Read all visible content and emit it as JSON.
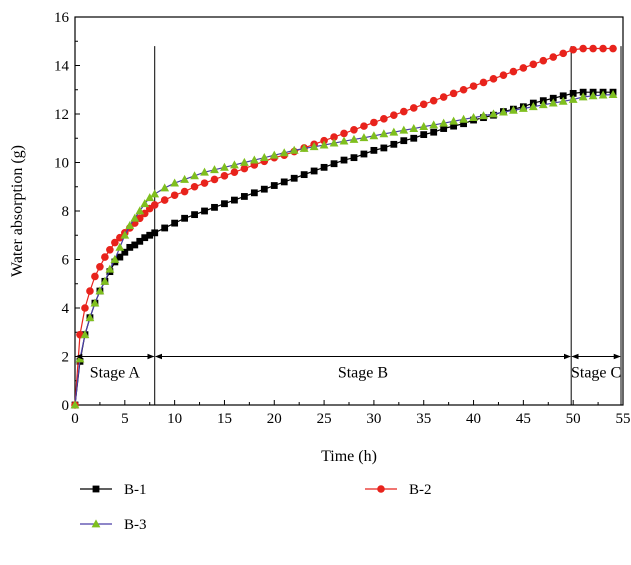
{
  "chart_data": {
    "type": "line",
    "xlabel": "Time (h)",
    "ylabel": "Water absorption (g)",
    "xlim": [
      0,
      55
    ],
    "ylim": [
      0,
      16
    ],
    "xticks": [
      0,
      5,
      10,
      15,
      20,
      25,
      30,
      35,
      40,
      45,
      50,
      55
    ],
    "yticks": [
      0,
      2,
      4,
      6,
      8,
      10,
      12,
      14,
      16
    ],
    "grid": false,
    "legend_position": "bottom",
    "series": [
      {
        "name": "B-1",
        "color": "#000000",
        "marker": "square",
        "x": [
          0,
          0.5,
          1,
          1.5,
          2,
          2.5,
          3,
          3.5,
          4,
          4.5,
          5,
          5.5,
          6,
          6.5,
          7,
          7.5,
          8,
          9,
          10,
          11,
          12,
          13,
          14,
          15,
          16,
          17,
          18,
          19,
          20,
          21,
          22,
          23,
          24,
          25,
          26,
          27,
          28,
          29,
          30,
          31,
          32,
          33,
          34,
          35,
          36,
          37,
          38,
          39,
          40,
          41,
          42,
          43,
          44,
          45,
          46,
          47,
          48,
          49,
          50,
          51,
          52,
          53,
          54
        ],
        "y": [
          0,
          1.8,
          2.9,
          3.6,
          4.2,
          4.7,
          5.1,
          5.5,
          5.9,
          6.1,
          6.3,
          6.5,
          6.6,
          6.75,
          6.9,
          7.0,
          7.1,
          7.3,
          7.5,
          7.7,
          7.85,
          8.0,
          8.15,
          8.3,
          8.45,
          8.6,
          8.75,
          8.9,
          9.05,
          9.2,
          9.35,
          9.5,
          9.65,
          9.8,
          9.95,
          10.1,
          10.2,
          10.35,
          10.5,
          10.6,
          10.75,
          10.9,
          11.0,
          11.15,
          11.25,
          11.4,
          11.5,
          11.6,
          11.75,
          11.85,
          11.95,
          12.1,
          12.2,
          12.3,
          12.45,
          12.55,
          12.65,
          12.75,
          12.85,
          12.9,
          12.9,
          12.9,
          12.9
        ]
      },
      {
        "name": "B-2",
        "color": "#e8231c",
        "marker": "circle",
        "x": [
          0,
          0.5,
          1,
          1.5,
          2,
          2.5,
          3,
          3.5,
          4,
          4.5,
          5,
          5.5,
          6,
          6.5,
          7,
          7.5,
          8,
          9,
          10,
          11,
          12,
          13,
          14,
          15,
          16,
          17,
          18,
          19,
          20,
          21,
          22,
          23,
          24,
          25,
          26,
          27,
          28,
          29,
          30,
          31,
          32,
          33,
          34,
          35,
          36,
          37,
          38,
          39,
          40,
          41,
          42,
          43,
          44,
          45,
          46,
          47,
          48,
          49,
          50,
          51,
          52,
          53,
          54
        ],
        "y": [
          0,
          2.9,
          4.0,
          4.7,
          5.3,
          5.7,
          6.1,
          6.4,
          6.7,
          6.9,
          7.1,
          7.3,
          7.5,
          7.7,
          7.9,
          8.1,
          8.25,
          8.45,
          8.65,
          8.8,
          9.0,
          9.15,
          9.3,
          9.45,
          9.6,
          9.75,
          9.9,
          10.05,
          10.2,
          10.3,
          10.45,
          10.6,
          10.75,
          10.9,
          11.05,
          11.2,
          11.35,
          11.5,
          11.65,
          11.8,
          11.95,
          12.1,
          12.25,
          12.4,
          12.55,
          12.7,
          12.85,
          13.0,
          13.15,
          13.3,
          13.45,
          13.6,
          13.75,
          13.9,
          14.05,
          14.2,
          14.35,
          14.5,
          14.65,
          14.7,
          14.7,
          14.7,
          14.7
        ]
      },
      {
        "name": "B-3",
        "color": "#7fbf1f",
        "line_color": "#4a3fa8",
        "marker": "triangle",
        "x": [
          0,
          0.5,
          1,
          1.5,
          2,
          2.5,
          3,
          3.5,
          4,
          4.5,
          5,
          5.5,
          6,
          6.5,
          7,
          7.5,
          8,
          9,
          10,
          11,
          12,
          13,
          14,
          15,
          16,
          17,
          18,
          19,
          20,
          21,
          22,
          23,
          24,
          25,
          26,
          27,
          28,
          29,
          30,
          31,
          32,
          33,
          34,
          35,
          36,
          37,
          38,
          39,
          40,
          41,
          42,
          43,
          44,
          45,
          46,
          47,
          48,
          49,
          50,
          51,
          52,
          53,
          54
        ],
        "y": [
          0,
          1.9,
          2.9,
          3.6,
          4.2,
          4.7,
          5.1,
          5.6,
          6.0,
          6.5,
          7.0,
          7.4,
          7.7,
          8.0,
          8.3,
          8.55,
          8.7,
          8.95,
          9.15,
          9.3,
          9.45,
          9.6,
          9.7,
          9.8,
          9.9,
          10.0,
          10.1,
          10.2,
          10.3,
          10.4,
          10.5,
          10.58,
          10.65,
          10.72,
          10.8,
          10.88,
          10.95,
          11.02,
          11.1,
          11.18,
          11.25,
          11.33,
          11.4,
          11.48,
          11.55,
          11.62,
          11.7,
          11.78,
          11.85,
          11.93,
          12.0,
          12.08,
          12.15,
          12.23,
          12.3,
          12.38,
          12.45,
          12.52,
          12.6,
          12.7,
          12.75,
          12.78,
          12.8
        ]
      }
    ],
    "stage_boundaries": [
      8,
      49.8,
      54.8
    ],
    "stages": [
      {
        "label": "Stage A",
        "x_from": 0,
        "x_to": 8
      },
      {
        "label": "Stage B",
        "x_from": 8,
        "x_to": 49.8
      },
      {
        "label": "Stage C",
        "x_from": 49.8,
        "x_to": 54.8
      }
    ],
    "stage_arrow_y": 2.0
  }
}
